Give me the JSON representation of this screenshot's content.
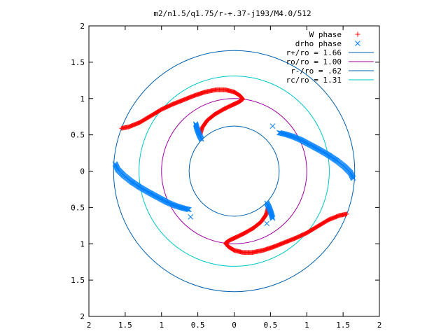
{
  "chart_data": {
    "type": "scatter",
    "title": "m2/n1.5/q1.75/r-+.37-j193/M4.0/512",
    "xlim": [
      -2,
      2
    ],
    "ylim": [
      -2,
      2
    ],
    "x_ticks": [
      "2",
      "1.5",
      "1",
      "0.5",
      "0",
      "0.5",
      "1",
      "1.5",
      "2"
    ],
    "y_ticks": [
      "2",
      "1.5",
      "1",
      "0.5",
      "0",
      "0.5",
      "1",
      "1.5",
      "2"
    ],
    "grid": false,
    "legend_position": "top-right",
    "circles": [
      {
        "name": "r+/ro = 1.66",
        "radius": 1.66,
        "color": "#0060ad"
      },
      {
        "name": "ro/ro = 1.00",
        "radius": 1.0,
        "color": "#a000a0"
      },
      {
        "name": "r-/ro = .62",
        "radius": 0.62,
        "color": "#0060ad"
      },
      {
        "name": "rc/ro = 1.31",
        "radius": 1.31,
        "color": "#00c8c8"
      }
    ],
    "series": [
      {
        "name": "W phase",
        "marker": "+",
        "color": "#ff0000",
        "arms": [
          [
            [
              -1.55,
              0.59
            ],
            [
              -1.45,
              0.61
            ],
            [
              -1.3,
              0.67
            ],
            [
              -1.15,
              0.76
            ],
            [
              -1.0,
              0.85
            ],
            [
              -0.85,
              0.92
            ],
            [
              -0.7,
              0.98
            ],
            [
              -0.55,
              1.04
            ],
            [
              -0.4,
              1.09
            ],
            [
              -0.25,
              1.12
            ],
            [
              -0.12,
              1.12
            ],
            [
              0.0,
              1.09
            ],
            [
              0.08,
              1.04
            ],
            [
              0.12,
              0.99
            ],
            [
              0.06,
              0.95
            ],
            [
              -0.05,
              0.9
            ],
            [
              -0.15,
              0.85
            ],
            [
              -0.27,
              0.78
            ],
            [
              -0.37,
              0.7
            ],
            [
              -0.44,
              0.6
            ],
            [
              -0.47,
              0.5
            ]
          ],
          [
            [
              1.55,
              -0.59
            ],
            [
              1.45,
              -0.61
            ],
            [
              1.3,
              -0.67
            ],
            [
              1.15,
              -0.76
            ],
            [
              1.0,
              -0.85
            ],
            [
              0.85,
              -0.92
            ],
            [
              0.7,
              -0.98
            ],
            [
              0.55,
              -1.04
            ],
            [
              0.4,
              -1.09
            ],
            [
              0.25,
              -1.12
            ],
            [
              0.12,
              -1.12
            ],
            [
              0.0,
              -1.09
            ],
            [
              -0.08,
              -1.04
            ],
            [
              -0.12,
              -0.99
            ],
            [
              -0.06,
              -0.95
            ],
            [
              0.05,
              -0.9
            ],
            [
              0.15,
              -0.85
            ],
            [
              0.27,
              -0.78
            ],
            [
              0.37,
              -0.7
            ],
            [
              0.44,
              -0.6
            ],
            [
              0.47,
              -0.5
            ]
          ]
        ]
      },
      {
        "name": "drho phase",
        "marker": "x",
        "color": "#0080ff",
        "arms": [
          [
            [
              -1.64,
              0.1
            ],
            [
              -1.6,
              0.02
            ],
            [
              -1.52,
              -0.06
            ],
            [
              -1.42,
              -0.14
            ],
            [
              -1.3,
              -0.22
            ],
            [
              -1.18,
              -0.29
            ],
            [
              -1.05,
              -0.36
            ],
            [
              -0.92,
              -0.43
            ],
            [
              -0.8,
              -0.48
            ],
            [
              -0.7,
              -0.51
            ],
            [
              -0.62,
              -0.53
            ]
          ],
          [
            [
              1.64,
              -0.1
            ],
            [
              1.6,
              -0.02
            ],
            [
              1.52,
              0.06
            ],
            [
              1.42,
              0.14
            ],
            [
              1.3,
              0.22
            ],
            [
              1.18,
              0.29
            ],
            [
              1.05,
              0.36
            ],
            [
              0.92,
              0.43
            ],
            [
              0.8,
              0.48
            ],
            [
              0.7,
              0.51
            ],
            [
              0.62,
              0.53
            ]
          ],
          [
            [
              -0.53,
              0.65
            ],
            [
              -0.51,
              0.58
            ],
            [
              -0.48,
              0.5
            ],
            [
              -0.45,
              0.44
            ]
          ],
          [
            [
              0.45,
              -0.44
            ],
            [
              0.48,
              -0.5
            ],
            [
              0.51,
              -0.58
            ],
            [
              0.53,
              -0.65
            ]
          ]
        ],
        "outliers": [
          [
            -0.6,
            -0.63
          ],
          [
            0.53,
            0.62
          ],
          [
            0.45,
            -0.72
          ]
        ]
      }
    ]
  }
}
